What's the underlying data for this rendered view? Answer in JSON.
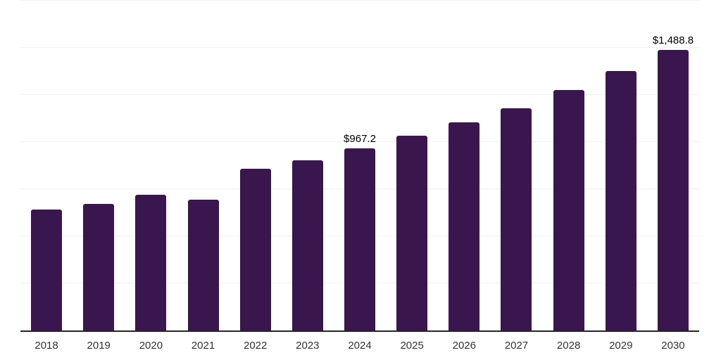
{
  "chart_data": {
    "type": "bar",
    "title": "",
    "xlabel": "",
    "ylabel": "",
    "categories": [
      "2018",
      "2019",
      "2020",
      "2021",
      "2022",
      "2023",
      "2024",
      "2025",
      "2026",
      "2027",
      "2028",
      "2029",
      "2030"
    ],
    "values": [
      640,
      673,
      720,
      694,
      857,
      903,
      967.2,
      1033,
      1106,
      1180,
      1276,
      1378,
      1488.8
    ],
    "data_labels": [
      null,
      null,
      null,
      null,
      null,
      null,
      "$967.2",
      null,
      null,
      null,
      null,
      null,
      "$1,488.8"
    ],
    "ylim": [
      0,
      1750
    ],
    "gridline_step": 250,
    "grid": "horizontal",
    "legend": "none",
    "colors": {
      "bar": "#3a164f",
      "grid": "#f2f2f2",
      "axis_line": "#262626",
      "tick_label": "#333333",
      "data_label": "#000000",
      "background": "#ffffff"
    }
  }
}
